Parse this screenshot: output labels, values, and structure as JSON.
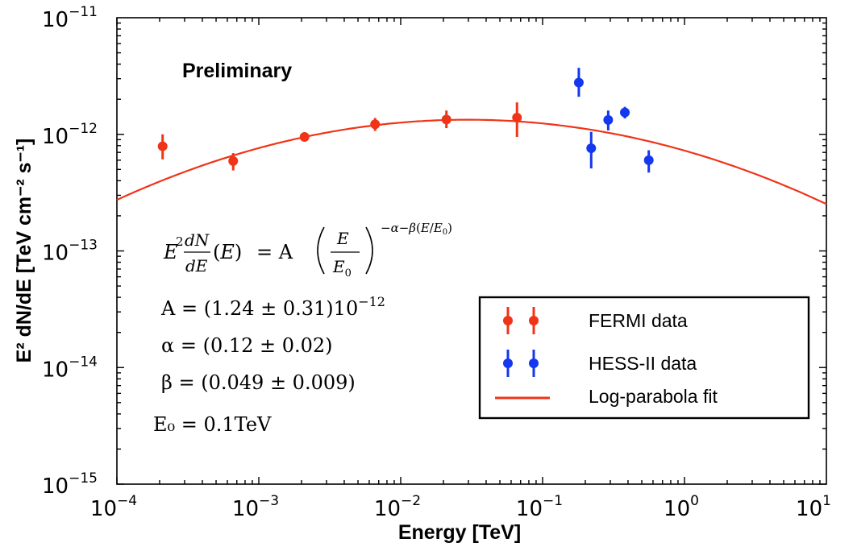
{
  "chart_data": {
    "type": "scatter",
    "title": "",
    "xlabel": "Energy [TeV]",
    "ylabel": "E² dN/dE [TeV cm⁻² s⁻¹]",
    "xscale": "log",
    "yscale": "log",
    "xlim": [
      0.0001,
      10
    ],
    "ylim": [
      1e-15,
      1e-11
    ],
    "x_ticks": [
      {
        "base": "10",
        "exp": "−4"
      },
      {
        "base": "10",
        "exp": "−3"
      },
      {
        "base": "10",
        "exp": "−2"
      },
      {
        "base": "10",
        "exp": "−1"
      },
      {
        "base": "10",
        "exp": "0"
      },
      {
        "base": "10",
        "exp": "1"
      }
    ],
    "y_ticks": [
      {
        "base": "10",
        "exp": "−15"
      },
      {
        "base": "10",
        "exp": "−14"
      },
      {
        "base": "10",
        "exp": "−13"
      },
      {
        "base": "10",
        "exp": "−12"
      },
      {
        "base": "10",
        "exp": "−11"
      }
    ],
    "grid": false,
    "legend_position": "lower-right",
    "series": [
      {
        "name": "FERMI data",
        "color": "#f03418",
        "marker": "errorbar-point",
        "points": [
          {
            "x": 0.00021,
            "y": 7.9e-13,
            "ylo": 6.1e-13,
            "yhi": 1e-12
          },
          {
            "x": 0.00066,
            "y": 5.9e-13,
            "ylo": 4.9e-13,
            "yhi": 6.9e-13
          },
          {
            "x": 0.0021,
            "y": 9.5e-13,
            "ylo": 8.7e-13,
            "yhi": 1.04e-12
          },
          {
            "x": 0.0066,
            "y": 1.22e-12,
            "ylo": 1.07e-12,
            "yhi": 1.38e-12
          },
          {
            "x": 0.021,
            "y": 1.34e-12,
            "ylo": 1.13e-12,
            "yhi": 1.6e-12
          },
          {
            "x": 0.066,
            "y": 1.39e-12,
            "ylo": 9.5e-13,
            "yhi": 1.88e-12
          }
        ]
      },
      {
        "name": "HESS-II data",
        "color": "#1437f0",
        "marker": "errorbar-point",
        "points": [
          {
            "x": 0.18,
            "y": 2.78e-12,
            "ylo": 2.1e-12,
            "yhi": 3.72e-12
          },
          {
            "x": 0.22,
            "y": 7.6e-13,
            "ylo": 5.1e-13,
            "yhi": 1.05e-12
          },
          {
            "x": 0.29,
            "y": 1.33e-12,
            "ylo": 1.08e-12,
            "yhi": 1.6e-12
          },
          {
            "x": 0.38,
            "y": 1.54e-12,
            "ylo": 1.37e-12,
            "yhi": 1.72e-12
          },
          {
            "x": 0.56,
            "y": 6e-13,
            "ylo": 4.7e-13,
            "yhi": 7.3e-13
          }
        ]
      },
      {
        "name": "Log-parabola fit",
        "color": "#f03418",
        "marker": "line",
        "model": {
          "A": 1.24e-12,
          "alpha": 0.12,
          "beta": 0.049,
          "E0": 0.1
        }
      }
    ],
    "annotations": {
      "preliminary": "Preliminary",
      "formula_lhs": "E",
      "formula_rhs": "= A",
      "params": [
        "A = (1.24 ± 0.31)10",
        "α = (0.12 ± 0.02)",
        "β = (0.049 ± 0.009)",
        "E₀ = 0.1TeV"
      ],
      "A_exp": "−12"
    }
  }
}
